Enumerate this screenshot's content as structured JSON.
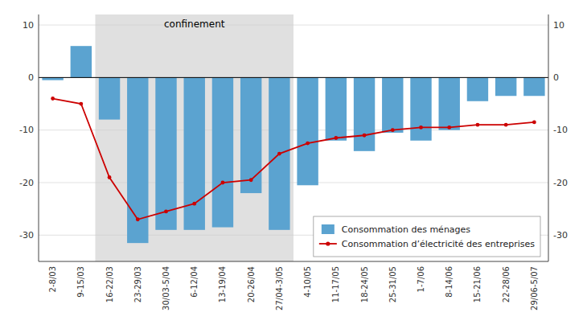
{
  "chart_data": {
    "type": "bar",
    "categories": [
      "2-8/03",
      "9-15/03",
      "16-22/03",
      "23-29/03",
      "30/03-5/04",
      "6-12/04",
      "13-19/04",
      "20-26/04",
      "27/04-3/05",
      "4-10/05",
      "11-17/05",
      "18-24/05",
      "25-31/05",
      "1-7/06",
      "8-14/06",
      "15-21/06",
      "22-28/06",
      "29/06-5/07"
    ],
    "series": [
      {
        "name": "Consommation des ménages",
        "type": "bar",
        "color": "#5ba3d0",
        "values": [
          -0.5,
          6.0,
          -8.0,
          -31.5,
          -29.0,
          -29.0,
          -28.5,
          -22.0,
          -29.0,
          -20.5,
          -12.0,
          -14.0,
          -10.5,
          -12.0,
          -10.0,
          -4.5,
          -3.5,
          -3.5
        ]
      },
      {
        "name": "Consommation d’électricité des entreprises",
        "type": "line",
        "color": "#cc0000",
        "marker": "circle",
        "axis": "y2",
        "values": [
          -4.0,
          -5.0,
          -19.0,
          -27.0,
          -25.5,
          -24.0,
          -20.0,
          -19.5,
          -14.5,
          -12.5,
          -11.5,
          -11.0,
          -10.0,
          -9.5,
          -9.5,
          -9.0,
          -9.0,
          -8.5
        ]
      }
    ],
    "ylim": [
      -35,
      12
    ],
    "yticks": [
      -30,
      -20,
      -10,
      0,
      10
    ],
    "y2lim": [
      -35,
      12
    ],
    "y2ticks": [
      -30,
      -20,
      -10,
      0,
      10
    ],
    "grid": true,
    "legend": "lower right",
    "annotations": [
      {
        "text": "confinement",
        "from": "16-22/03",
        "to": "27/04-3/05",
        "color": "#e0e0e0"
      }
    ]
  }
}
